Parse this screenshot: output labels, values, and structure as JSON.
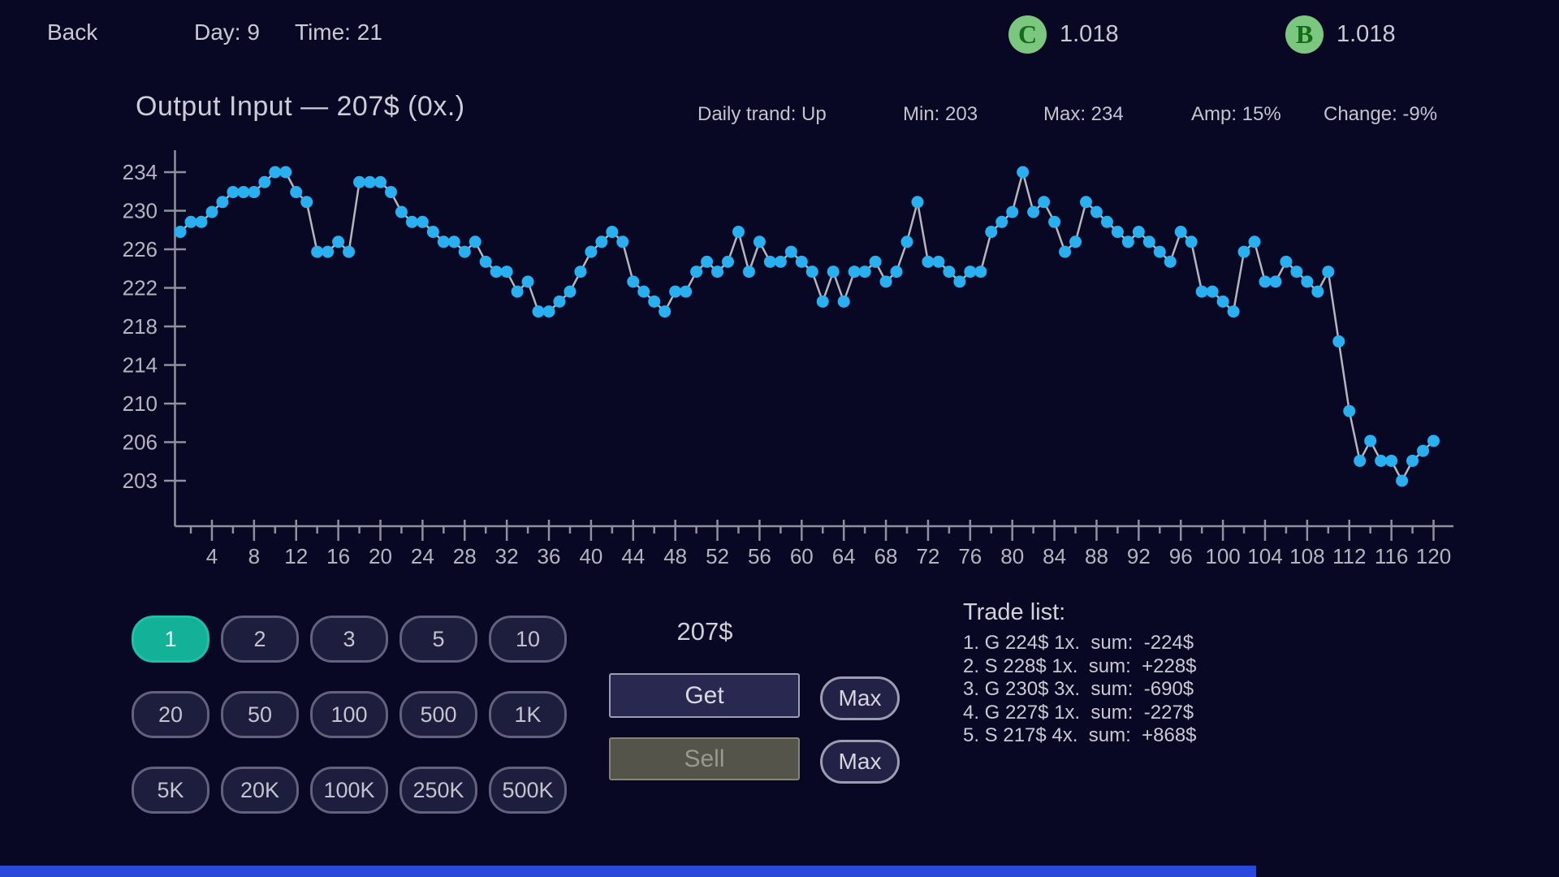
{
  "topbar": {
    "back_label": "Back",
    "day_text": "Day: 9",
    "time_text": "Time: 21",
    "currencies": [
      {
        "icon": "C",
        "value": "1.018"
      },
      {
        "icon": "B",
        "value": "1.018"
      }
    ]
  },
  "chart_header": {
    "title": "Output Input — 207$ (0x.)",
    "stats": [
      "Daily trand: Up",
      "Min: 203",
      "Max: 234",
      "Amp: 15%",
      "Change: -9%"
    ]
  },
  "chart_data": {
    "type": "line",
    "title": "Output Input — 207$ (0x.)",
    "x_start": 1,
    "values": [
      228,
      229,
      229,
      230,
      231,
      232,
      232,
      232,
      233,
      234,
      234,
      232,
      231,
      226,
      226,
      227,
      226,
      233,
      233,
      233,
      232,
      230,
      229,
      229,
      228,
      227,
      227,
      226,
      227,
      225,
      224,
      224,
      222,
      223,
      220,
      220,
      221,
      222,
      224,
      226,
      227,
      228,
      227,
      223,
      222,
      221,
      220,
      222,
      222,
      224,
      225,
      224,
      225,
      228,
      224,
      227,
      225,
      225,
      226,
      225,
      224,
      221,
      224,
      221,
      224,
      224,
      225,
      223,
      224,
      227,
      231,
      225,
      225,
      224,
      223,
      224,
      224,
      228,
      229,
      230,
      234,
      230,
      231,
      229,
      226,
      227,
      231,
      230,
      229,
      228,
      227,
      228,
      227,
      226,
      225,
      228,
      227,
      222,
      222,
      221,
      220,
      226,
      227,
      223,
      223,
      225,
      224,
      223,
      222,
      224,
      217,
      210,
      205,
      207,
      205,
      205,
      203,
      205,
      206,
      207
    ],
    "y_tick_labels": [
      234,
      230,
      226,
      222,
      218,
      214,
      210,
      206,
      203
    ],
    "x_tick_labels": [
      4,
      8,
      12,
      16,
      20,
      24,
      28,
      32,
      36,
      40,
      44,
      48,
      52,
      56,
      60,
      64,
      68,
      72,
      76,
      80,
      84,
      88,
      92,
      96,
      100,
      104,
      108,
      112,
      116,
      120
    ],
    "x_minor_tick_step": 2,
    "ylim": [
      203,
      234
    ],
    "xlim": [
      1,
      120
    ],
    "grid": false,
    "legend": "none",
    "point_color": "#28b0f0",
    "line_color": "#b5b5bf",
    "axis_color": "#8f8f9d",
    "tick_label_color": "#b4b4c1",
    "stats": {
      "daily_trend": "Up",
      "min": 203,
      "max": 234,
      "amp": "15%",
      "change": "-9%"
    }
  },
  "controls": {
    "quantity_rows": [
      [
        "1",
        "2",
        "3",
        "5",
        "10"
      ],
      [
        "20",
        "50",
        "100",
        "500",
        "1K"
      ],
      [
        "5K",
        "20K",
        "100K",
        "250K",
        "500K"
      ]
    ],
    "selected_quantity": "1",
    "selected_color": "#13b298",
    "price": "207$",
    "get_label": "Get",
    "sell_label": "Sell",
    "max_label": "Max"
  },
  "trade_list": {
    "title": "Trade list:",
    "items": [
      "1. G 224$ 1x.  sum:  -224$",
      "2. S 228$ 1x.  sum:  +228$",
      "3. G 230$ 3x.  sum:  -690$",
      "4. G 227$ 1x.  sum:  -227$",
      "5. S 217$ 4x.  sum:  +868$"
    ]
  }
}
